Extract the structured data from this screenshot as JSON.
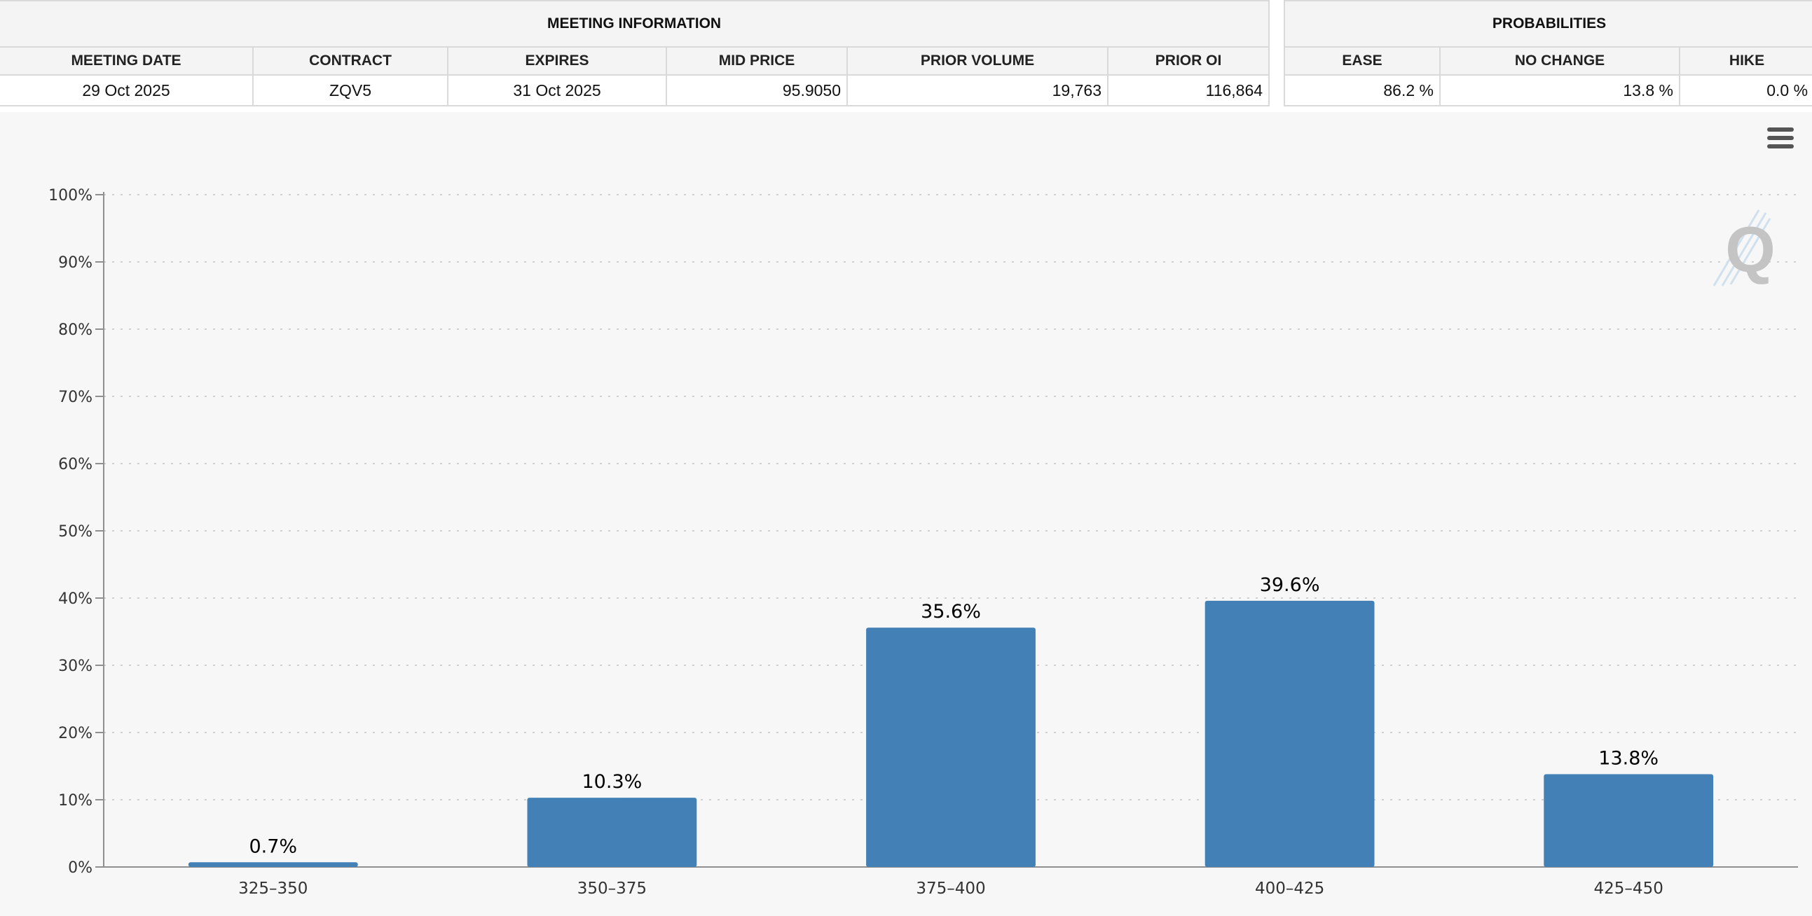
{
  "meeting_info": {
    "header": "MEETING INFORMATION",
    "columns": [
      "MEETING DATE",
      "CONTRACT",
      "EXPIRES",
      "MID PRICE",
      "PRIOR VOLUME",
      "PRIOR OI"
    ],
    "row": [
      "29 Oct 2025",
      "ZQV5",
      "31 Oct 2025",
      "95.9050",
      "19,763",
      "116,864"
    ]
  },
  "probabilities": {
    "header": "PROBABILITIES",
    "columns": [
      "EASE",
      "NO CHANGE",
      "HIKE"
    ],
    "row": [
      "86.2 %",
      "13.8 %",
      "0.0 %"
    ]
  },
  "chart_menu": {
    "icon": "hamburger-menu-icon"
  },
  "logo": {
    "icon": "q-logo-icon"
  },
  "chart_data": {
    "type": "bar",
    "categories": [
      "325-350",
      "350-375",
      "375-400",
      "400-425",
      "425-450"
    ],
    "values": [
      0.7,
      10.3,
      35.6,
      39.6,
      13.8
    ],
    "data_labels": [
      "0.7%",
      "10.3%",
      "35.6%",
      "39.6%",
      "13.8%"
    ],
    "title": "",
    "xlabel": "",
    "ylabel": "",
    "ylim": [
      0,
      100
    ],
    "yticks": [
      "0%",
      "10%",
      "20%",
      "30%",
      "40%",
      "50%",
      "60%",
      "70%",
      "80%",
      "90%",
      "100%"
    ],
    "grid": true,
    "bar_color": "#4380b6",
    "grid_color": "#cfcfcf",
    "axis_color": "#8f8f8f"
  }
}
